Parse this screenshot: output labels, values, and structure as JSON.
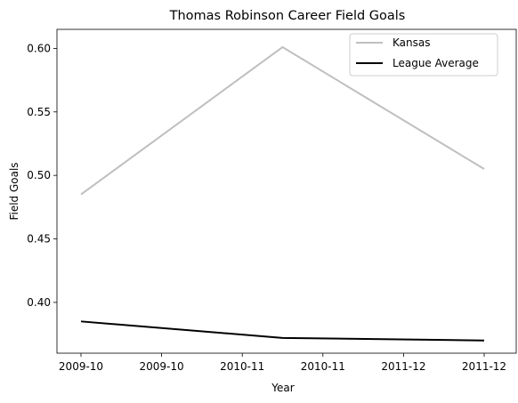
{
  "chart_data": {
    "type": "line",
    "title": "Thomas Robinson  Career Field Goals",
    "xlabel": "Year",
    "ylabel": "Field Goals",
    "x_tick_labels": [
      "2009-10",
      "2009-10",
      "2010-11",
      "2010-11",
      "2011-12",
      "2011-12"
    ],
    "x": [
      "2009-10",
      "2010-11",
      "2011-12"
    ],
    "ylim": [
      0.36,
      0.615
    ],
    "y_ticks": [
      0.4,
      0.45,
      0.5,
      0.55,
      0.6
    ],
    "y_tick_labels": [
      "0.40",
      "0.45",
      "0.50",
      "0.55",
      "0.60"
    ],
    "grid": false,
    "legend_position": "top-right",
    "series": [
      {
        "name": "Kansas",
        "values": [
          0.485,
          0.601,
          0.505
        ],
        "color": "#bfbfbf"
      },
      {
        "name": "League Average",
        "values": [
          0.385,
          0.372,
          0.37
        ],
        "color": "#000000"
      }
    ]
  }
}
